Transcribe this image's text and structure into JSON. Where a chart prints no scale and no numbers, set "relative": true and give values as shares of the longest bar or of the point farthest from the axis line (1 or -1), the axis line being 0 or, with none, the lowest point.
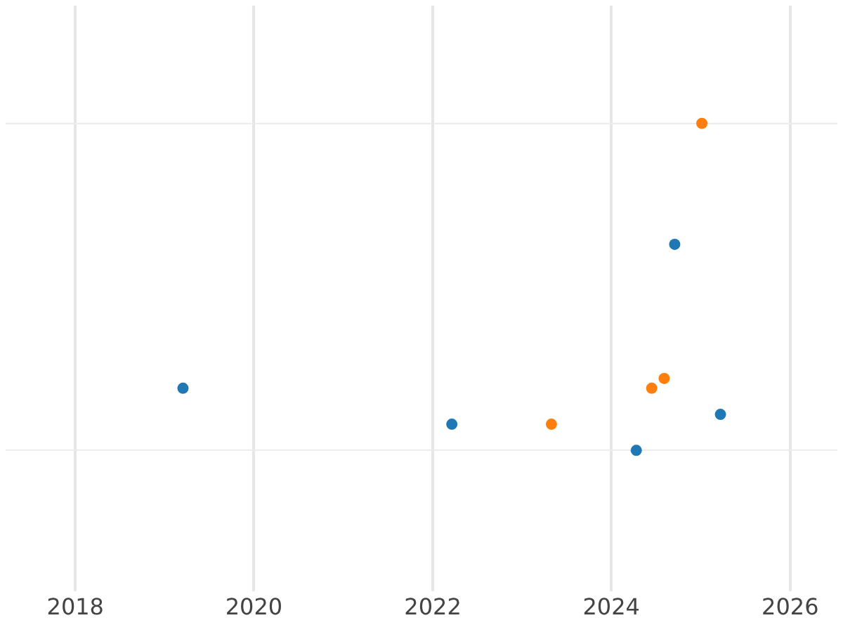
{
  "chart_data": {
    "type": "scatter",
    "relative": true,
    "xlim": [
      "2017-03-22",
      "2026-07-13"
    ],
    "xticks": [
      "2018",
      "2020",
      "2022",
      "2024",
      "2026"
    ],
    "series": [
      {
        "color": "#1f77b4",
        "x": [
          "2019-03-17",
          "2022-03-20",
          "2024-04-12",
          "2024-09-16",
          "2025-03-22"
        ],
        "values": [
          0.19,
          0.08,
          0,
          0.63,
          0.11
        ]
      },
      {
        "color": "#ff7f0e",
        "x": [
          "2023-05-01",
          "2024-06-14",
          "2024-08-04",
          "2025-01-05"
        ],
        "values": [
          0.08,
          0.19,
          0.22,
          1
        ]
      }
    ],
    "grid": true,
    "marker": "circle",
    "legend": false
  }
}
